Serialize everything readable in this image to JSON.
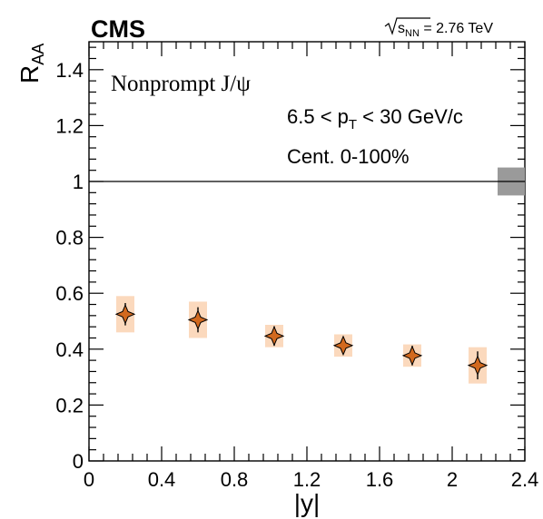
{
  "header": {
    "experiment": "CMS",
    "energy_sqrt": "s",
    "energy_sub": "NN",
    "energy_value": " = 2.76 TeV"
  },
  "annotations": {
    "particle": "Nonprompt J/ψ",
    "pt_pre": "6.5 < p",
    "pt_sub": "T",
    "pt_post": " < 30 GeV/c",
    "centrality": "Cent. 0-100%"
  },
  "colors": {
    "marker_fill": "#d2691e",
    "syst_box": "#fbd9bd",
    "global_box": "#9a9a9a"
  },
  "chart_data": {
    "type": "scatter",
    "xlabel": "|y|",
    "ylabel": "R",
    "ylabel_sub": "AA",
    "xlim": [
      0,
      2.4
    ],
    "ylim": [
      0,
      1.5
    ],
    "x_ticks": [
      "0",
      "0.4",
      "0.8",
      "1.2",
      "1.6",
      "2",
      "2.4"
    ],
    "y_ticks": [
      "0",
      "0.2",
      "0.4",
      "0.6",
      "0.8",
      "1",
      "1.2",
      "1.4"
    ],
    "reference_line": 1.0,
    "global_uncertainty": 0.05,
    "points": [
      {
        "x": 0.2,
        "x_err": 0.05,
        "y": 0.525,
        "stat": 0.04,
        "syst": 0.065
      },
      {
        "x": 0.6,
        "x_err": 0.05,
        "y": 0.505,
        "stat": 0.045,
        "syst": 0.065
      },
      {
        "x": 1.02,
        "x_err": 0.05,
        "y": 0.447,
        "stat": 0.035,
        "syst": 0.04
      },
      {
        "x": 1.4,
        "x_err": 0.05,
        "y": 0.413,
        "stat": 0.03,
        "syst": 0.04
      },
      {
        "x": 1.78,
        "x_err": 0.05,
        "y": 0.377,
        "stat": 0.035,
        "syst": 0.04
      },
      {
        "x": 2.14,
        "x_err": 0.05,
        "y": 0.342,
        "stat": 0.05,
        "syst": 0.065
      }
    ]
  }
}
